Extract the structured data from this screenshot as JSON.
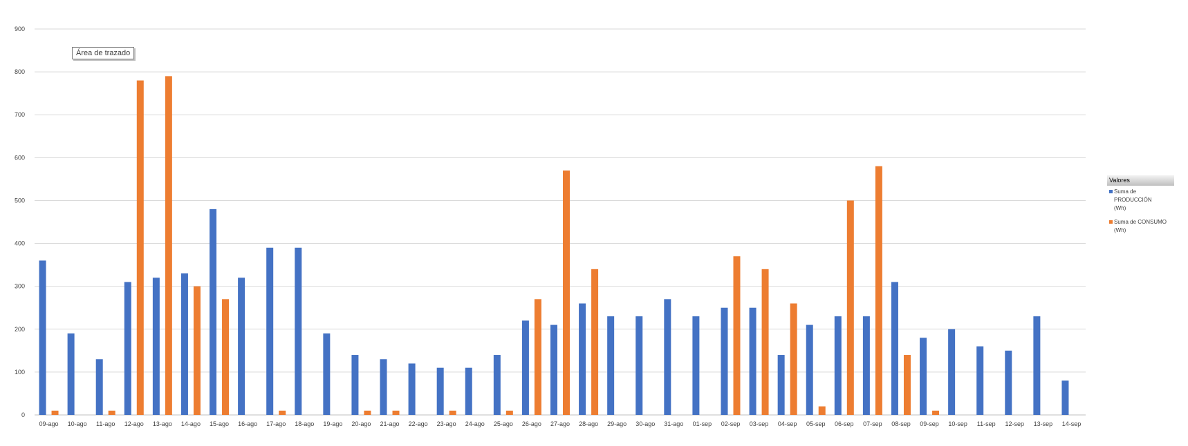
{
  "chart_data": {
    "type": "bar",
    "categories": [
      "09-ago",
      "10-ago",
      "11-ago",
      "12-ago",
      "13-ago",
      "14-ago",
      "15-ago",
      "16-ago",
      "17-ago",
      "18-ago",
      "19-ago",
      "20-ago",
      "21-ago",
      "22-ago",
      "23-ago",
      "24-ago",
      "25-ago",
      "26-ago",
      "27-ago",
      "28-ago",
      "29-ago",
      "30-ago",
      "31-ago",
      "01-sep",
      "02-sep",
      "03-sep",
      "04-sep",
      "05-sep",
      "06-sep",
      "07-sep",
      "08-sep",
      "09-sep",
      "10-sep",
      "11-sep",
      "12-sep",
      "13-sep",
      "14-sep"
    ],
    "series": [
      {
        "name": "Suma de PRODUCCIÓN (Wh)",
        "color": "#4472c4",
        "values": [
          360,
          190,
          130,
          310,
          320,
          330,
          480,
          320,
          390,
          390,
          190,
          140,
          130,
          120,
          110,
          110,
          140,
          220,
          210,
          260,
          230,
          230,
          270,
          230,
          250,
          250,
          140,
          210,
          230,
          230,
          310,
          180,
          200,
          160,
          150,
          230,
          80
        ]
      },
      {
        "name": "Suma de CONSUMO (Wh)",
        "color": "#ed7d31",
        "values": [
          10,
          0,
          10,
          780,
          790,
          300,
          270,
          0,
          10,
          0,
          0,
          10,
          10,
          0,
          10,
          0,
          10,
          270,
          570,
          340,
          0,
          0,
          0,
          0,
          370,
          340,
          260,
          20,
          500,
          580,
          140,
          10,
          0,
          0,
          0,
          0,
          0
        ]
      }
    ],
    "ylim": [
      0,
      900
    ],
    "yticks": [
      0,
      100,
      200,
      300,
      400,
      500,
      600,
      700,
      800,
      900
    ],
    "grid": true,
    "legend_position": "right"
  },
  "tooltip": {
    "text": "Área de trazado"
  },
  "legend": {
    "title": "Valores",
    "items": [
      {
        "label_line1": "Suma de",
        "label_line2": "PRODUCCIÓN",
        "label_line3": "(Wh)",
        "color": "#4472c4"
      },
      {
        "label_line1": "Suma de CONSUMO",
        "label_line2": "(Wh)",
        "color": "#ed7d31"
      }
    ]
  }
}
